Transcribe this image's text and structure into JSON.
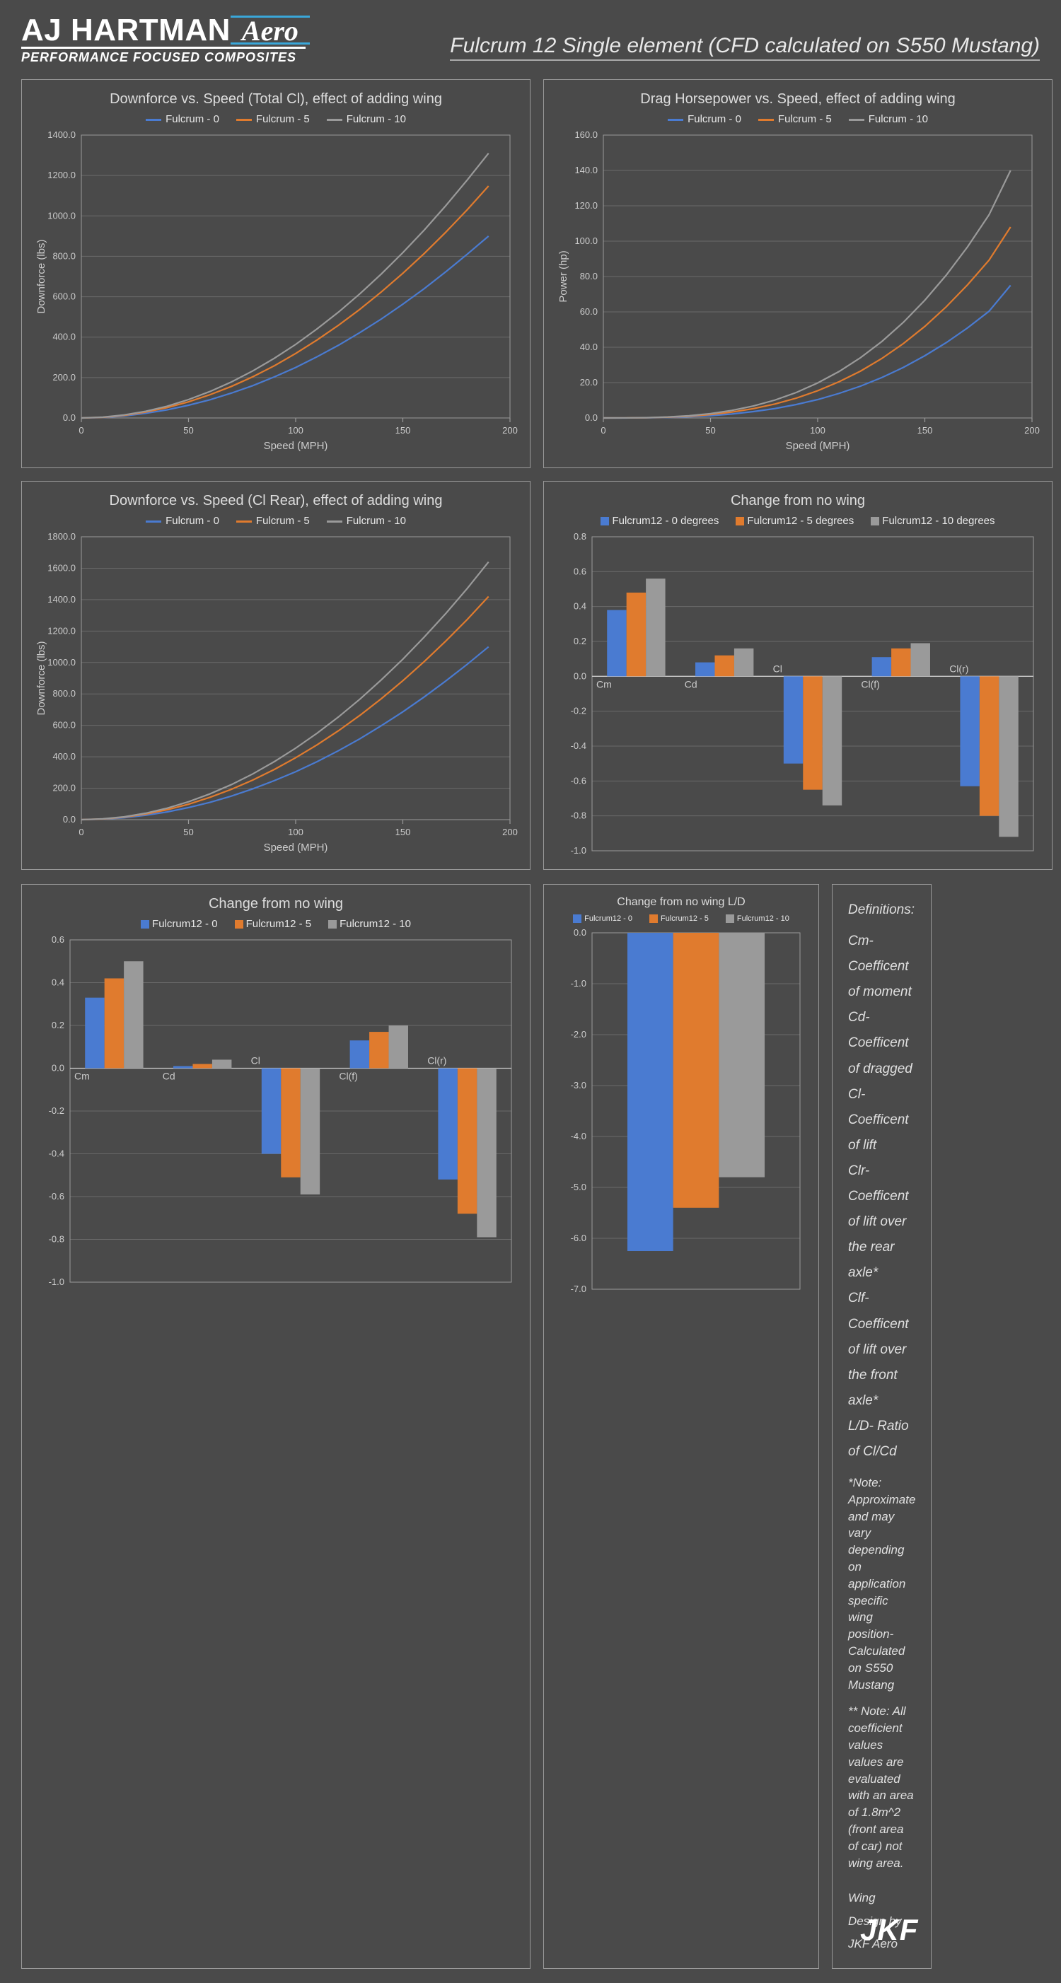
{
  "header": {
    "logo_main": "AJ HARTMAN",
    "logo_aero": "Aero",
    "logo_sub": "PERFORMANCE FOCUSED COMPOSITES",
    "page_title": "Fulcrum 12 Single element (CFD calculated on S550 Mustang)"
  },
  "colors": {
    "series0": "#4a7bd1",
    "series5": "#e07b2e",
    "series10": "#9a9a9a",
    "panel_border": "#999999",
    "grid": "#6a6a6a",
    "text": "#cccccc",
    "bg": "#4a4a4a"
  },
  "chart1": {
    "title": "Downforce vs. Speed (Total Cl), effect of adding wing",
    "legend": [
      "Fulcrum - 0",
      "Fulcrum - 5",
      "Fulcrum - 10"
    ],
    "xlabel": "Speed (MPH)",
    "ylabel": "Downforce (lbs)",
    "xlim": [
      0,
      200
    ],
    "xtick_step": 50,
    "ylim": [
      0,
      1400
    ],
    "ytick_step": 200,
    "x": [
      0,
      10,
      20,
      30,
      40,
      50,
      60,
      70,
      80,
      90,
      100,
      110,
      120,
      130,
      140,
      150,
      160,
      170,
      180,
      190
    ],
    "s0": [
      0,
      2,
      10,
      23,
      40,
      63,
      90,
      123,
      160,
      203,
      250,
      303,
      360,
      423,
      490,
      563,
      640,
      723,
      810,
      900
    ],
    "s5": [
      0,
      3,
      13,
      29,
      51,
      80,
      115,
      156,
      204,
      258,
      319,
      386,
      459,
      538,
      624,
      716,
      814,
      919,
      1030,
      1148
    ],
    "s10": [
      0,
      4,
      15,
      33,
      58,
      91,
      131,
      178,
      233,
      295,
      364,
      441,
      524,
      615,
      713,
      818,
      930,
      1050,
      1177,
      1310
    ],
    "line_width": 2.2
  },
  "chart2": {
    "title": "Drag Horsepower vs. Speed, effect of adding wing",
    "legend": [
      "Fulcrum - 0",
      "Fulcrum - 5",
      "Fulcrum - 10"
    ],
    "xlabel": "Speed (MPH)",
    "ylabel": "Power (hp)",
    "xlim": [
      0,
      200
    ],
    "xtick_step": 50,
    "ylim": [
      0,
      160
    ],
    "ytick_step": 20,
    "x": [
      0,
      10,
      20,
      30,
      40,
      50,
      60,
      70,
      80,
      90,
      100,
      110,
      120,
      130,
      140,
      150,
      160,
      170,
      180,
      190
    ],
    "s0": [
      0,
      0.01,
      0.08,
      0.3,
      0.67,
      1.3,
      2.25,
      3.6,
      5.3,
      7.6,
      10.4,
      13.9,
      18.0,
      22.9,
      28.6,
      35.2,
      42.6,
      51.0,
      60.4,
      75
    ],
    "s5": [
      0,
      0.02,
      0.13,
      0.43,
      0.98,
      1.92,
      3.32,
      5.27,
      7.86,
      11.2,
      15.4,
      20.5,
      26.5,
      33.7,
      42.1,
      51.8,
      62.9,
      75.4,
      89.3,
      108
    ],
    "s10": [
      0,
      0.02,
      0.16,
      0.55,
      1.26,
      2.47,
      4.27,
      6.78,
      10.1,
      14.4,
      19.8,
      26.3,
      34.1,
      43.3,
      54.1,
      66.6,
      80.8,
      96.9,
      115,
      140
    ],
    "line_width": 2.2
  },
  "chart3": {
    "title": "Downforce vs. Speed (Cl Rear), effect of adding wing",
    "legend": [
      "Fulcrum - 0",
      "Fulcrum - 5",
      "Fulcrum - 10"
    ],
    "xlabel": "Speed (MPH)",
    "ylabel": "Downforce (lbs)",
    "xlim": [
      0,
      200
    ],
    "xtick_step": 50,
    "ylim": [
      0,
      1800
    ],
    "ytick_step": 200,
    "x": [
      0,
      10,
      20,
      30,
      40,
      50,
      60,
      70,
      80,
      90,
      100,
      110,
      120,
      130,
      140,
      150,
      160,
      170,
      180,
      190
    ],
    "s0": [
      0,
      3,
      12,
      28,
      49,
      77,
      110,
      150,
      196,
      248,
      305,
      369,
      439,
      515,
      598,
      686,
      781,
      882,
      988,
      1100
    ],
    "s5": [
      0,
      4,
      16,
      35,
      63,
      98,
      142,
      193,
      252,
      319,
      394,
      476,
      566,
      664,
      770,
      884,
      1006,
      1136,
      1273,
      1420
    ],
    "s10": [
      0,
      5,
      18,
      41,
      73,
      114,
      164,
      223,
      291,
      369,
      455,
      550,
      654,
      767,
      890,
      1021,
      1162,
      1311,
      1470,
      1640
    ],
    "line_width": 2.2
  },
  "bar1": {
    "title": "Change from no wing",
    "legend": [
      "Fulcrum12 - 0 degrees",
      "Fulcrum12 - 5 degrees",
      "Fulcrum12 - 10 degrees"
    ],
    "categories": [
      "Cm",
      "Cd",
      "Cl",
      "Cl(f)",
      "Cl(r)"
    ],
    "s0": [
      0.38,
      0.08,
      -0.5,
      0.11,
      -0.63
    ],
    "s5": [
      0.48,
      0.12,
      -0.65,
      0.16,
      -0.8
    ],
    "s10": [
      0.56,
      0.16,
      -0.74,
      0.19,
      -0.92
    ],
    "ylim": [
      -1.0,
      0.8
    ],
    "ytick_step": 0.2,
    "bar_width": 0.22
  },
  "bar2": {
    "title": "Change from no wing",
    "legend": [
      "Fulcrum12 - 0",
      "Fulcrum12 - 5",
      "Fulcrum12 - 10"
    ],
    "categories": [
      "Cm",
      "Cd",
      "Cl",
      "Cl(f)",
      "Cl(r)"
    ],
    "s0": [
      0.33,
      0.01,
      -0.4,
      0.13,
      -0.52
    ],
    "s5": [
      0.42,
      0.02,
      -0.51,
      0.17,
      -0.68
    ],
    "s10": [
      0.5,
      0.04,
      -0.59,
      0.2,
      -0.79
    ],
    "ylim": [
      -1.0,
      0.6
    ],
    "ytick_step": 0.2,
    "bar_width": 0.22
  },
  "bar3": {
    "title": "Change from no wing L/D",
    "legend": [
      "Fulcrum12 - 0",
      "Fulcrum12 - 5",
      "Fulcrum12 - 10"
    ],
    "categories": [
      ""
    ],
    "s0": [
      -6.25
    ],
    "s5": [
      -5.4
    ],
    "s10": [
      -4.8
    ],
    "ylim": [
      -7.0,
      0.0
    ],
    "ytick_step": 1.0,
    "bar_width": 0.22
  },
  "definitions": {
    "heading": "Definitions:",
    "items": [
      "Cm- Coefficent of moment",
      "Cd- Coefficent of dragged",
      "Cl- Coefficent of lift",
      "Clr- Coefficent of lift over the rear axle*",
      "Clf- Coefficent of lift over the front axle*",
      "L/D- Ratio of Cl/Cd"
    ],
    "note1": "*Note: Approximate and may vary depending on application specific wing position- Calculated on S550 Mustang",
    "note2": "** Note: All coefficient values values are evaluated with an area of 1.8m^2 (front area of car) not wing area.",
    "credit": "Wing Design by JKF Aero",
    "jkf": "JKF"
  }
}
